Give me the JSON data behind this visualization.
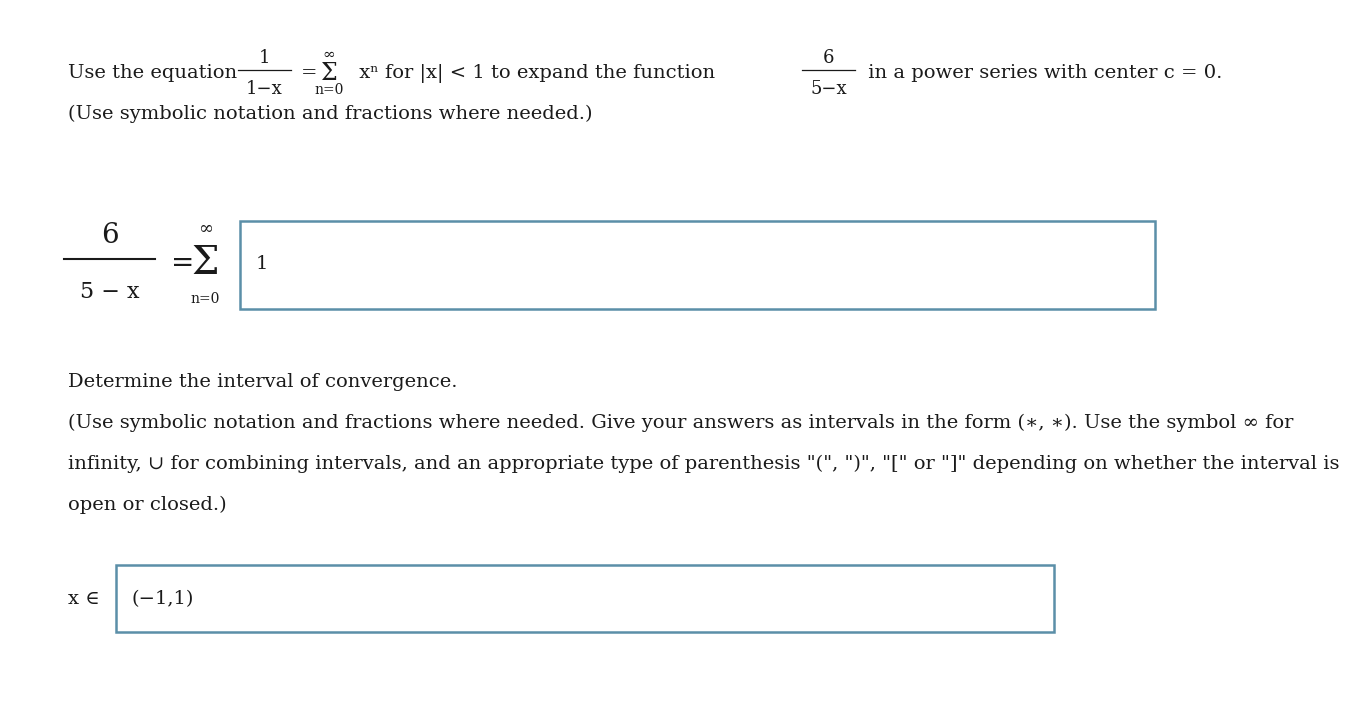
{
  "bg_color": "#ffffff",
  "text_color": "#1a1a1a",
  "box_border_color": "#5b8fa8",
  "font_size_main": 14,
  "line1_prefix": "Use the equation",
  "frac1_num": "1",
  "frac1_den": "1−x",
  "line1_mid": " xⁿ for |x| < 1 to expand the function",
  "frac2_num": "6",
  "frac2_den": "5−x",
  "line1_suffix": " in a power series with center c = 0.",
  "line2": "(Use symbolic notation and fractions where needed.)",
  "ans_frac_num": "6",
  "ans_frac_den": "5 − x",
  "ans_box_content": "1",
  "determine_text": "Determine the interval of convergence.",
  "conv_line1": "(Use symbolic notation and fractions where needed. Give your answers as intervals in the form (∗, ∗). Use the symbol ∞ for",
  "conv_line2": "infinity, ∪ for combining intervals, and an appropriate type of parenthesis \"(\", \")\", \"[\" or \"]\" depending on whether the interval is",
  "conv_line3": "open or closed.)",
  "interval_label": "x ∈",
  "interval_answer": "(−1,1)"
}
